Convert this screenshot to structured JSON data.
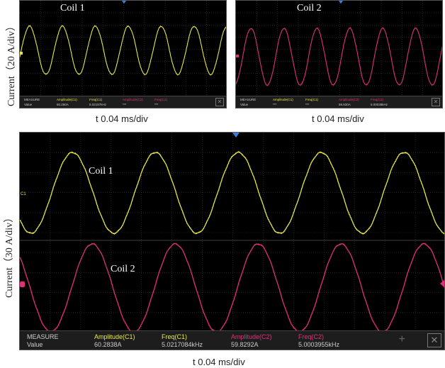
{
  "axis_label_top": "Current（20 A/div）",
  "axis_label_bottom": "Current（30 A/div）",
  "time_caption": "t 0.04 ms/div",
  "panel1": {
    "coil_label": "Coil 1",
    "trace_color": "#e6e64a",
    "measure": {
      "header": [
        "MEASURE",
        "Amplitude(C1)",
        "Freq(C1)",
        "Amplitude(C2)",
        "Freq(C2)"
      ],
      "values": [
        "Value",
        "60.260A",
        "5.02187kHz",
        "***",
        "***"
      ]
    }
  },
  "panel2": {
    "coil_label": "Coil 2",
    "trace_color": "#e0307a",
    "measure": {
      "header": [
        "MEASURE",
        "Amplitude(C1)",
        "Freq(C1)",
        "Amplitude(C2)",
        "Freq(C2)"
      ],
      "values": [
        "Value",
        "***",
        "***",
        "59.830A",
        "5.00038kHz"
      ]
    }
  },
  "panel3": {
    "coil1_label": "Coil 1",
    "coil2_label": "Coil 2",
    "channel_marker": "C1",
    "coil1_color": "#e6e64a",
    "coil2_color": "#e0307a",
    "measure": {
      "header": [
        "MEASURE",
        "Amplitude(C1)",
        "Freq(C1)",
        "Amplitude(C2)",
        "Freq(C2)"
      ],
      "values": [
        "Value",
        "60.2838A",
        "5.0217084kHz",
        "59.8292A",
        "5.0003955kHz"
      ]
    }
  }
}
